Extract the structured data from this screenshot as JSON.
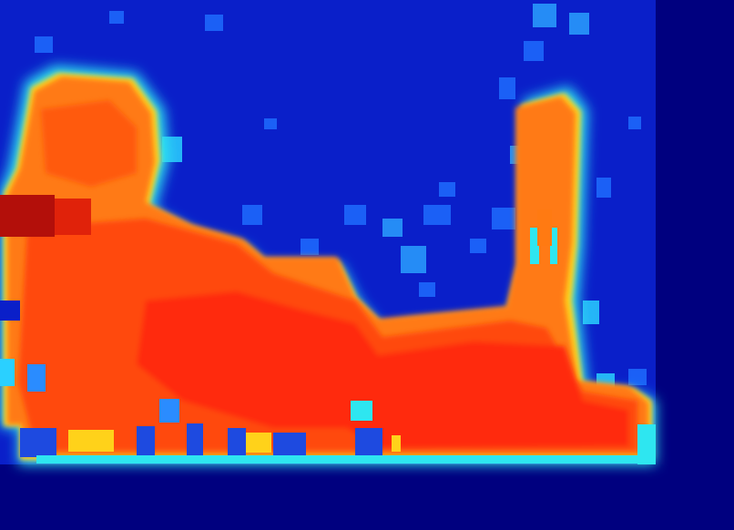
{
  "image": {
    "kind": "depth-colormap",
    "colormap": "jet",
    "colors": {
      "background": "#00007f",
      "far": "#0a1fc9",
      "mid_blue": "#1e6cff",
      "cyan": "#2ee6f0",
      "yellow": "#ffd21a",
      "orange": "#ff7a12",
      "red": "#ff2a08",
      "dark_red": "#b30f0a"
    }
  }
}
